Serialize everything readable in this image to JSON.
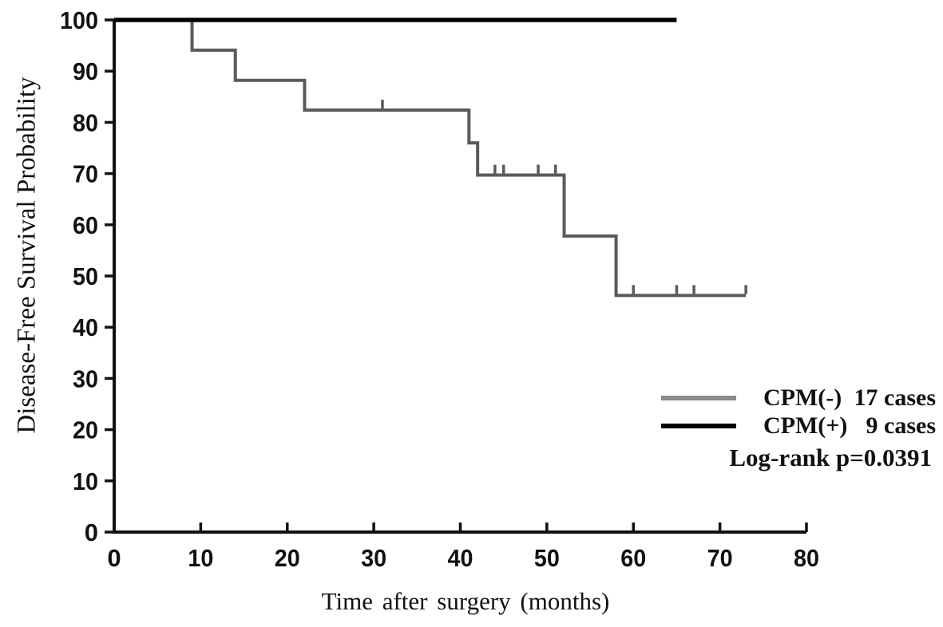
{
  "chart_data": {
    "type": "line",
    "subtype": "kaplan-meier-step",
    "title": "",
    "xlabel": "Time after surgery (months)",
    "ylabel": "Disease-Free Survival Probability",
    "xlim": [
      0,
      80
    ],
    "ylim": [
      0,
      100
    ],
    "xticks": [
      0,
      10,
      20,
      30,
      40,
      50,
      60,
      70,
      80
    ],
    "yticks": [
      0,
      10,
      20,
      30,
      40,
      50,
      60,
      70,
      80,
      90,
      100
    ],
    "grid": false,
    "legend_position": "lower-right",
    "axis_color": "#111111",
    "series": [
      {
        "name": "CPM(-)",
        "cases": "17 cases",
        "color": "#5a5a5a",
        "legend_color": "#8a8a8a",
        "points": [
          [
            0,
            100
          ],
          [
            9,
            100
          ],
          [
            9,
            94.1
          ],
          [
            14,
            94.1
          ],
          [
            14,
            88.2
          ],
          [
            22,
            88.2
          ],
          [
            22,
            82.4
          ],
          [
            41,
            82.4
          ],
          [
            41,
            76.0
          ],
          [
            42,
            76.0
          ],
          [
            42,
            69.7
          ],
          [
            52,
            69.7
          ],
          [
            52,
            57.8
          ],
          [
            58,
            57.8
          ],
          [
            58,
            46.2
          ],
          [
            73,
            46.2
          ]
        ],
        "censor_marks": [
          [
            31,
            82.4
          ],
          [
            44,
            69.7
          ],
          [
            45,
            69.7
          ],
          [
            49,
            69.7
          ],
          [
            51,
            69.7
          ],
          [
            60,
            46.2
          ],
          [
            65,
            46.2
          ],
          [
            67,
            46.2
          ],
          [
            73,
            46.2
          ]
        ]
      },
      {
        "name": "CPM(+)",
        "cases": "9 cases",
        "color": "#000000",
        "legend_color": "#000000",
        "points": [
          [
            0,
            100
          ],
          [
            65,
            100
          ]
        ],
        "censor_marks": []
      }
    ],
    "annotation": "Log-rank p=0.0391"
  }
}
